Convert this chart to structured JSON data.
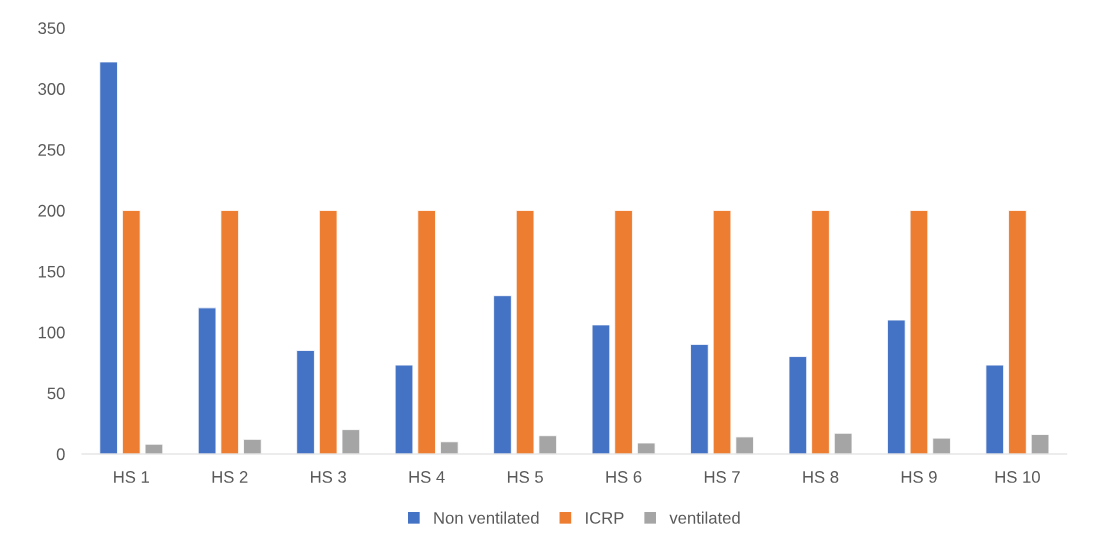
{
  "chart_data": {
    "type": "bar",
    "categories": [
      "HS 1",
      "HS 2",
      "HS 3",
      "HS 4",
      "HS 5",
      "HS 6",
      "HS 7",
      "HS 8",
      "HS 9",
      "HS 10"
    ],
    "series": [
      {
        "name": "Non ventilated",
        "color": "#4472c4",
        "values": [
          322,
          120,
          85,
          73,
          130,
          106,
          90,
          80,
          110,
          73
        ]
      },
      {
        "name": "ICRP",
        "color": "#ed7d31",
        "values": [
          200,
          200,
          200,
          200,
          200,
          200,
          200,
          200,
          200,
          200
        ]
      },
      {
        "name": "ventilated",
        "color": "#a5a5a5",
        "values": [
          8,
          12,
          20,
          10,
          15,
          9,
          14,
          17,
          13,
          16
        ]
      }
    ],
    "ylim": [
      0,
      350
    ],
    "yticks": [
      0,
      50,
      100,
      150,
      200,
      250,
      300,
      350
    ],
    "grid": false,
    "legend": "bottom"
  }
}
